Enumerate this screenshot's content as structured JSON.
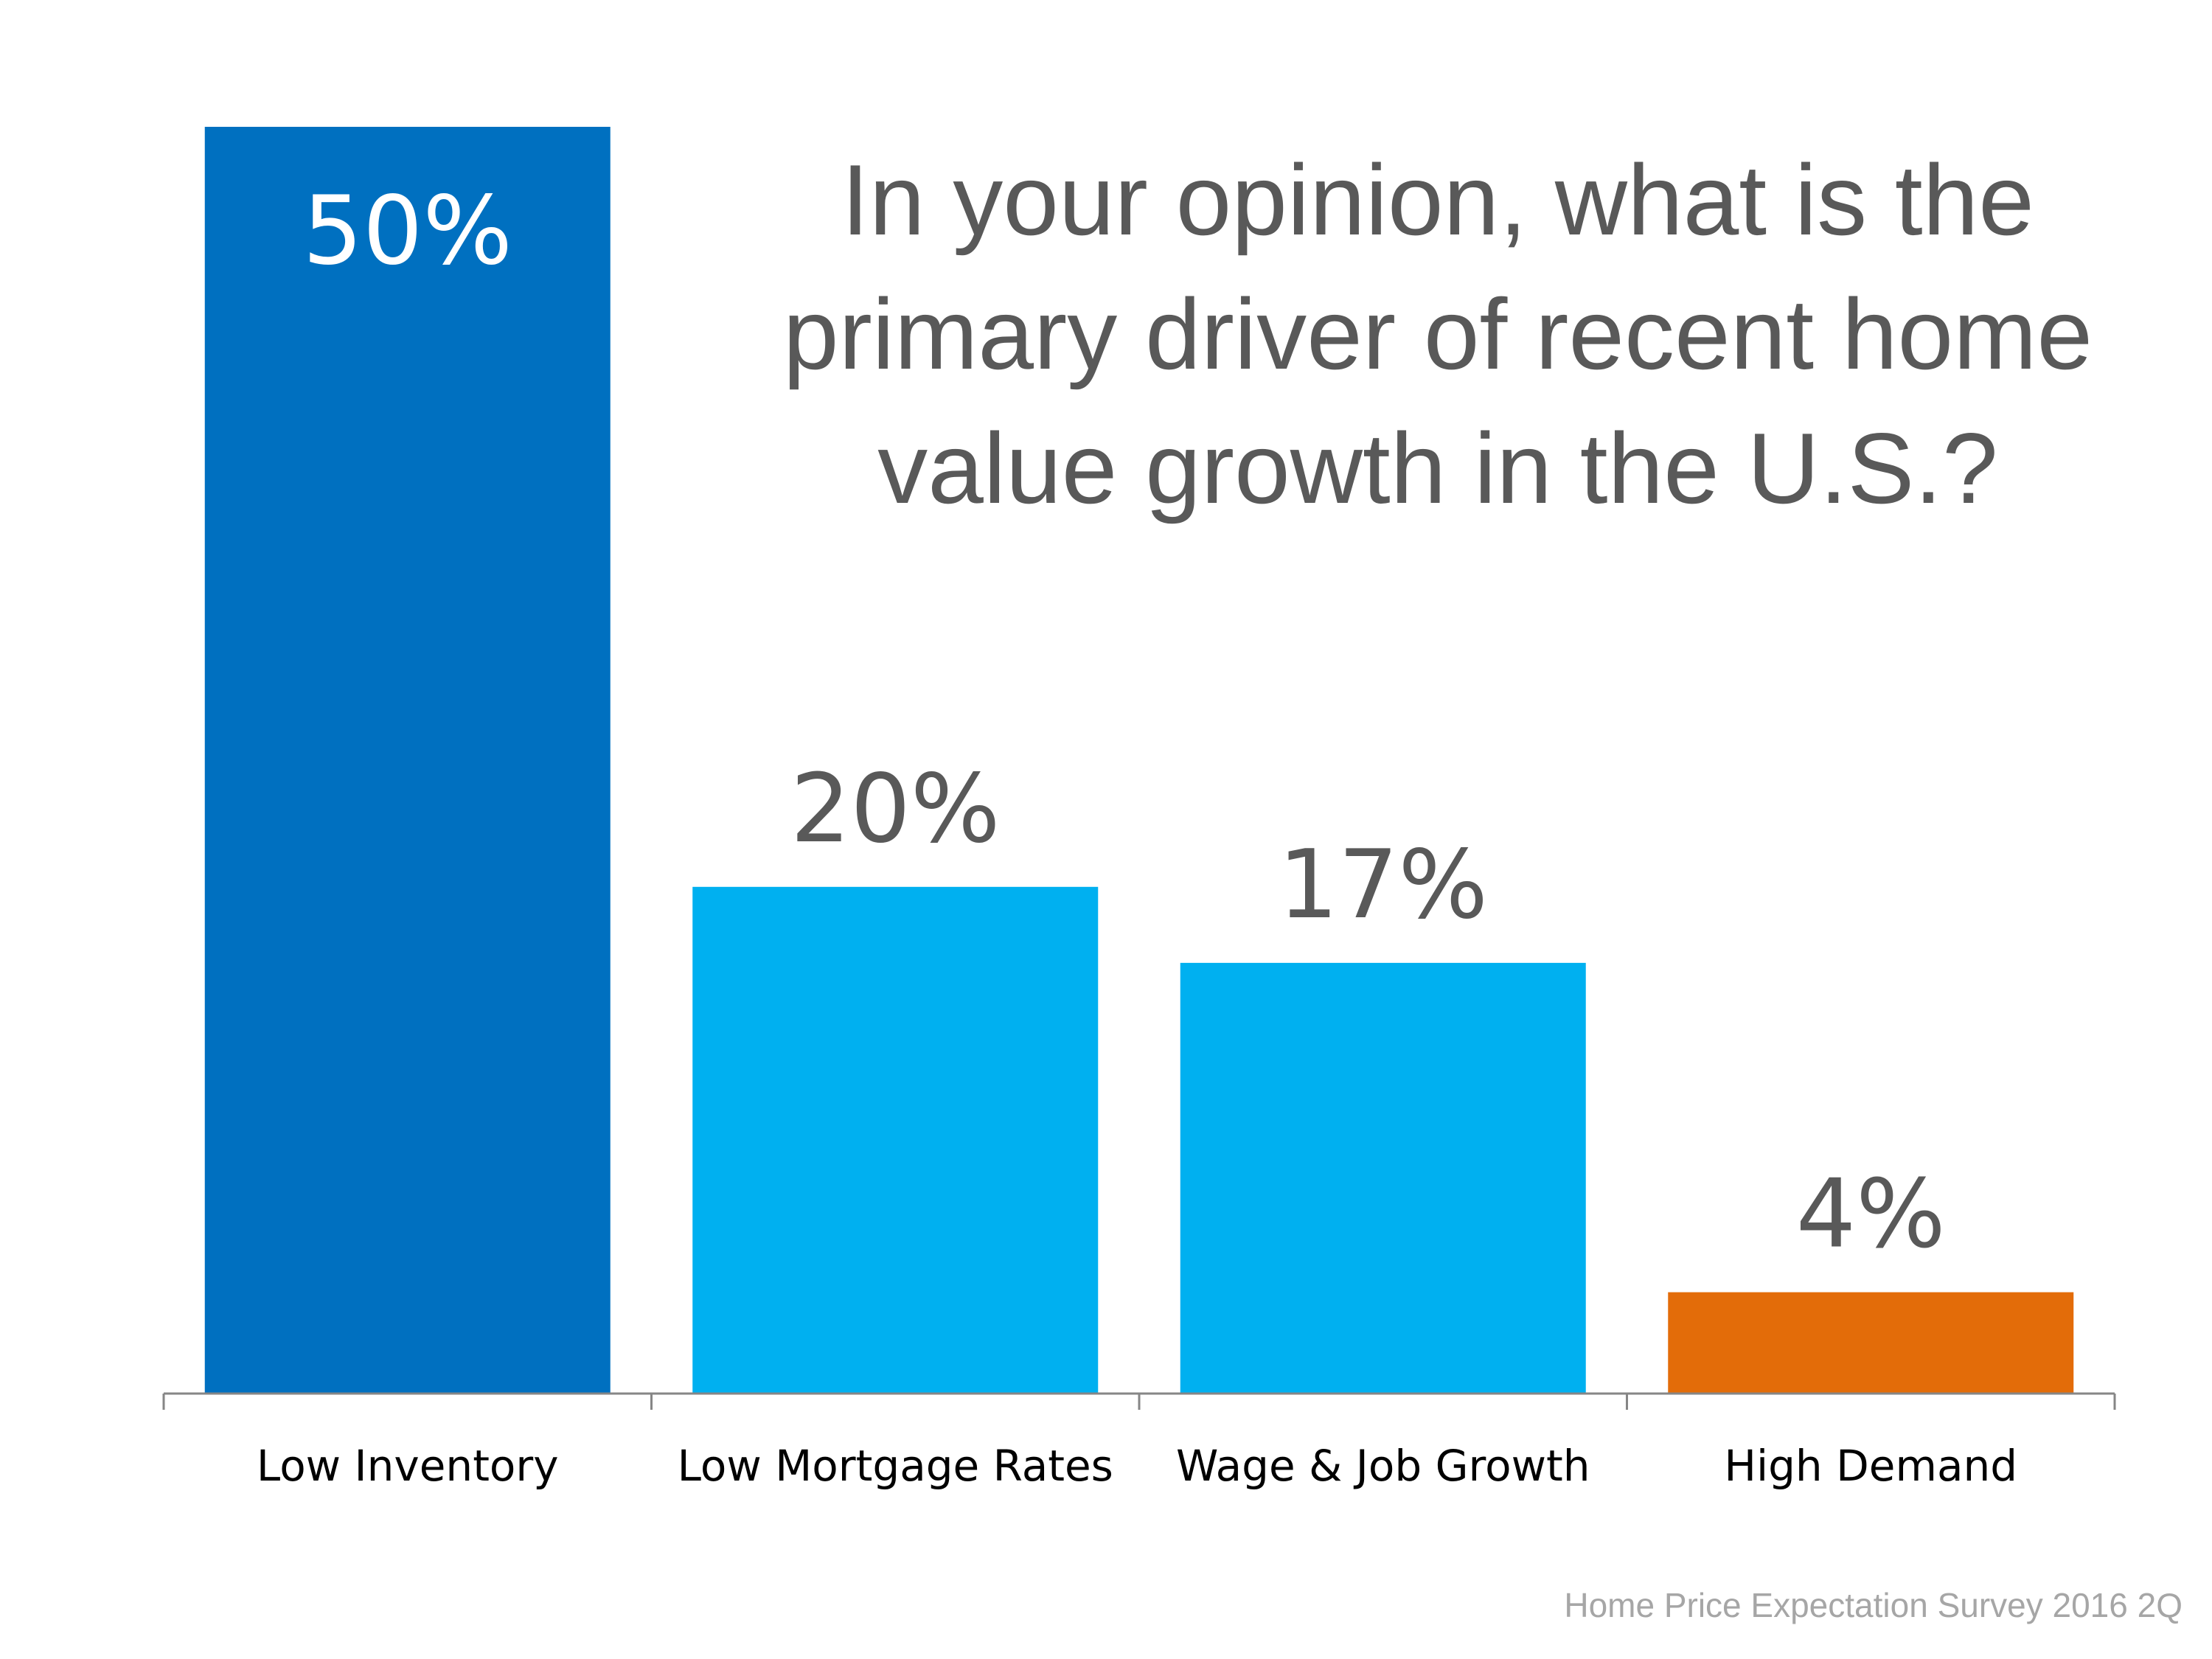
{
  "chart_data": {
    "type": "bar",
    "title": "In your opinion, what is the primary driver of recent home value growth in the U.S.?",
    "categories": [
      "Low Inventory",
      "Low Mortgage Rates",
      "Wage & Job Growth",
      "High Demand"
    ],
    "values": [
      50,
      20,
      17,
      4
    ],
    "value_labels": [
      "50%",
      "20%",
      "17%",
      "4%"
    ],
    "colors": [
      "#0070c0",
      "#00b0f0",
      "#00b0f0",
      "#e36c09"
    ],
    "label_colors": [
      "#ffffff",
      "#595959",
      "#595959",
      "#595959"
    ],
    "ylim": [
      0,
      50
    ],
    "grid": false,
    "legend": "none"
  },
  "source": "Home Price Expectation Survey 2016 2Q"
}
